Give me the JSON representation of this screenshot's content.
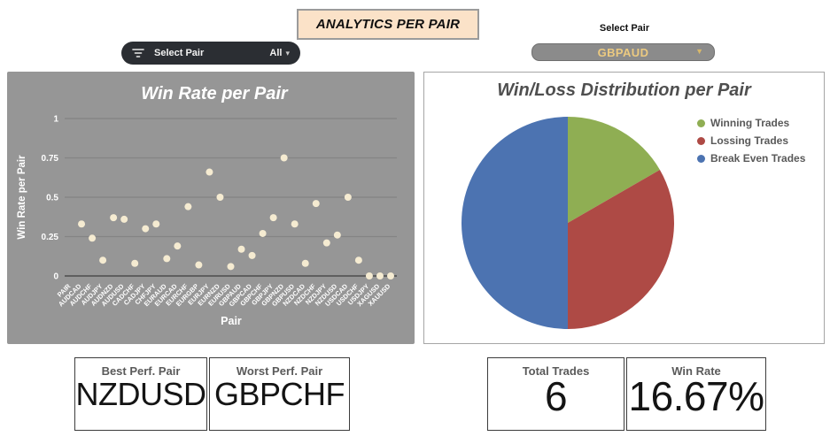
{
  "header": {
    "title": "ANALYTICS PER PAIR",
    "filter_pill": {
      "label": "Select Pair",
      "value": "All"
    },
    "pair_select": {
      "label": "Select Pair",
      "value": "GBPAUD"
    }
  },
  "colors": {
    "header_box_bg": "#fbe2c8",
    "pill_bg": "#2b2e33",
    "dropdown_bg": "#8b8b8b",
    "dropdown_text": "#ecca80",
    "scatter_bg": "#969696",
    "scatter_point": "#f5ebd1",
    "win_green": "#8fae53",
    "loss_red": "#ae4a45",
    "breakeven_blue": "#4c73b1",
    "legend_text": "#595959"
  },
  "chart_data": [
    {
      "type": "scatter",
      "title": "Win Rate per Pair",
      "xlabel": "Pair",
      "ylabel": "Win Rate per Pair",
      "ylim": [
        0,
        1
      ],
      "yticks": [
        0,
        0.25,
        0.5,
        0.75,
        1
      ],
      "grid": true,
      "background": "#969696",
      "point_color": "#f5ebd1",
      "categories": [
        "PAIR",
        "AUDCAD",
        "AUDCHF",
        "AUDJPY",
        "AUDNZD",
        "AUDUSD",
        "CADCHF",
        "CADJPY",
        "CHFJPY",
        "EURAUD",
        "EURCAD",
        "EURCHF",
        "EURGBP",
        "EURJPY",
        "EURNZD",
        "EURUSD",
        "GBPAUD",
        "GBPCAD",
        "GBPCHF",
        "GBPJPY",
        "GBPNZD",
        "GBPUSD",
        "NZDCAD",
        "NZDCHF",
        "NZDJPY",
        "NZDUSD",
        "USDCAD",
        "USDCHF",
        "USDJPY",
        "XAGUSD",
        "XAUUSD"
      ],
      "values": [
        null,
        0.33,
        0.24,
        0.1,
        0.37,
        0.36,
        0.08,
        0.3,
        0.33,
        0.11,
        0.19,
        0.44,
        0.07,
        0.66,
        0.5,
        0.06,
        0.17,
        0.13,
        0.27,
        0.37,
        0.75,
        0.33,
        0.08,
        0.46,
        0.21,
        0.26,
        0.5,
        0.1,
        0,
        0,
        0
      ]
    },
    {
      "type": "pie",
      "title": "Win/Loss Distribution per Pair",
      "legend_position": "top-right",
      "start_angle_deg": 0,
      "direction": "clockwise",
      "slices": [
        {
          "label": "Winning Trades",
          "value": 1,
          "percent": 16.67,
          "color": "#8fae53"
        },
        {
          "label": "Lossing Trades",
          "value": 2,
          "percent": 33.33,
          "color": "#ae4a45"
        },
        {
          "label": "Break Even Trades",
          "value": 3,
          "percent": 50.0,
          "color": "#4c73b1"
        }
      ]
    }
  ],
  "stats": [
    {
      "label": "Best Perf. Pair",
      "value": "NZDUSD"
    },
    {
      "label": "Worst Perf. Pair",
      "value": "GBPCHF"
    },
    {
      "label": "Total Trades",
      "value": "6"
    },
    {
      "label": "Win Rate",
      "value": "16.67%"
    }
  ]
}
